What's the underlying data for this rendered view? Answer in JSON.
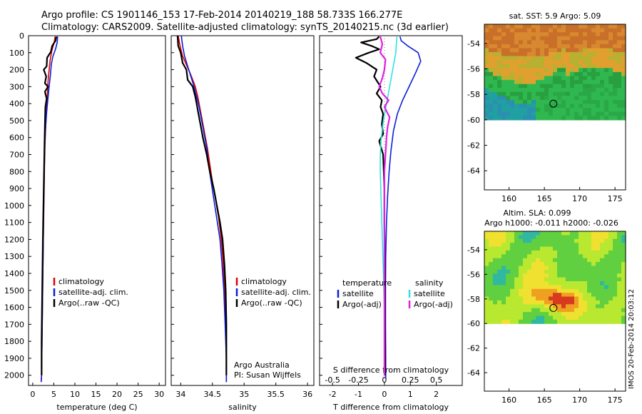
{
  "title": {
    "line1": "Argo profile: CS 1901146_153 17-Feb-2014 20140219_188 58.733S 166.277E",
    "line2": "Climatology: CARS2009. Satellite-adjusted climatology: synTS_20140215.nc (3d earlier)"
  },
  "colors": {
    "climatology": "#e00000",
    "satellite": "#0a1ed8",
    "argo": "#000000",
    "sat_t": "#33e0e0",
    "argo_adj_s": "#e020e0"
  },
  "side_text": "IMOS 20-Feb-2014 20:03:12",
  "chart_data": [
    {
      "type": "line",
      "xlabel": "temperature (deg C)",
      "ylabel": "",
      "xlim": [
        -1,
        31.5
      ],
      "ylim": [
        2060,
        0
      ],
      "xticks": [
        "0",
        "5",
        "10",
        "15",
        "20",
        "25",
        "30"
      ],
      "yticks": [
        "0",
        "100",
        "200",
        "300",
        "400",
        "500",
        "600",
        "700",
        "800",
        "900",
        "1000",
        "1100",
        "1200",
        "1300",
        "1400",
        "1500",
        "1600",
        "1700",
        "1800",
        "1900",
        "2000"
      ],
      "legend": [
        "climatology",
        "satellite-adj. clim.",
        "Argo(..raw -QC)"
      ],
      "series": [
        {
          "name": "climatology",
          "points": [
            [
              5.3,
              5
            ],
            [
              5.1,
              40
            ],
            [
              4.5,
              90
            ],
            [
              4.1,
              150
            ],
            [
              3.8,
              220
            ],
            [
              3.6,
              280
            ],
            [
              3.5,
              340
            ],
            [
              3.3,
              420
            ],
            [
              3.1,
              520
            ],
            [
              2.9,
              640
            ],
            [
              2.8,
              760
            ],
            [
              2.7,
              900
            ],
            [
              2.6,
              1050
            ],
            [
              2.5,
              1200
            ],
            [
              2.4,
              1400
            ],
            [
              2.3,
              1600
            ],
            [
              2.2,
              1800
            ],
            [
              2.1,
              2000
            ],
            [
              2.0,
              2040
            ]
          ]
        },
        {
          "name": "satellite-adj. clim.",
          "points": [
            [
              5.9,
              5
            ],
            [
              5.8,
              40
            ],
            [
              5.4,
              80
            ],
            [
              4.8,
              120
            ],
            [
              4.4,
              170
            ],
            [
              4.2,
              230
            ],
            [
              3.9,
              300
            ],
            [
              3.6,
              370
            ],
            [
              3.3,
              450
            ],
            [
              3.0,
              560
            ],
            [
              2.8,
              700
            ],
            [
              2.7,
              850
            ],
            [
              2.6,
              1000
            ],
            [
              2.5,
              1200
            ],
            [
              2.4,
              1400
            ],
            [
              2.3,
              1600
            ],
            [
              2.2,
              1800
            ],
            [
              2.1,
              2000
            ],
            [
              2.0,
              2040
            ]
          ]
        },
        {
          "name": "Argo(..raw -QC)",
          "points": [
            [
              5.6,
              5
            ],
            [
              5.4,
              30
            ],
            [
              4.6,
              60
            ],
            [
              4.3,
              95
            ],
            [
              3.4,
              130
            ],
            [
              3.3,
              180
            ],
            [
              2.6,
              200
            ],
            [
              3.2,
              240
            ],
            [
              2.9,
              280
            ],
            [
              3.6,
              300
            ],
            [
              2.9,
              330
            ],
            [
              3.3,
              370
            ],
            [
              3.0,
              420
            ],
            [
              2.9,
              520
            ],
            [
              2.8,
              640
            ],
            [
              2.7,
              760
            ],
            [
              2.6,
              900
            ],
            [
              2.5,
              1050
            ],
            [
              2.4,
              1200
            ],
            [
              2.3,
              1400
            ],
            [
              2.2,
              1600
            ],
            [
              2.1,
              1800
            ],
            [
              2.1,
              2000
            ]
          ]
        }
      ]
    },
    {
      "type": "line",
      "xlabel": "salinity",
      "xlim": [
        33.85,
        36.1
      ],
      "ylim": [
        2060,
        0
      ],
      "xticks": [
        "34",
        "34.5",
        "35",
        "35.5",
        "36"
      ],
      "legend": [
        "climatology",
        "satellite-adj. clim.",
        "Argo(..raw -QC)"
      ],
      "annotations": [
        "Argo Australia",
        "PI: Susan Wijffels"
      ],
      "series": [
        {
          "name": "climatology",
          "points": [
            [
              33.96,
              0
            ],
            [
              33.99,
              60
            ],
            [
              34.03,
              120
            ],
            [
              34.1,
              180
            ],
            [
              34.17,
              240
            ],
            [
              34.23,
              300
            ],
            [
              34.27,
              360
            ],
            [
              34.3,
              420
            ],
            [
              34.34,
              500
            ],
            [
              34.38,
              580
            ],
            [
              34.42,
              660
            ],
            [
              34.46,
              760
            ],
            [
              34.5,
              860
            ],
            [
              34.55,
              960
            ],
            [
              34.6,
              1080
            ],
            [
              34.64,
              1200
            ],
            [
              34.67,
              1340
            ],
            [
              34.69,
              1500
            ],
            [
              34.71,
              1700
            ],
            [
              34.72,
              1900
            ],
            [
              34.72,
              2040
            ]
          ]
        },
        {
          "name": "satellite-adj. clim.",
          "points": [
            [
              34.01,
              0
            ],
            [
              34.03,
              60
            ],
            [
              34.06,
              120
            ],
            [
              34.11,
              180
            ],
            [
              34.16,
              240
            ],
            [
              34.21,
              300
            ],
            [
              34.25,
              360
            ],
            [
              34.29,
              420
            ],
            [
              34.33,
              500
            ],
            [
              34.37,
              580
            ],
            [
              34.41,
              660
            ],
            [
              34.44,
              760
            ],
            [
              34.48,
              860
            ],
            [
              34.52,
              960
            ],
            [
              34.57,
              1080
            ],
            [
              34.62,
              1200
            ],
            [
              34.65,
              1340
            ],
            [
              34.68,
              1500
            ],
            [
              34.7,
              1700
            ],
            [
              34.72,
              1900
            ],
            [
              34.72,
              2040
            ]
          ]
        },
        {
          "name": "Argo(..raw -QC)",
          "points": [
            [
              33.95,
              0
            ],
            [
              33.96,
              60
            ],
            [
              34.0,
              100
            ],
            [
              34.03,
              160
            ],
            [
              34.09,
              200
            ],
            [
              34.11,
              260
            ],
            [
              34.19,
              300
            ],
            [
              34.23,
              360
            ],
            [
              34.25,
              400
            ],
            [
              34.28,
              460
            ],
            [
              34.31,
              520
            ],
            [
              34.35,
              600
            ],
            [
              34.41,
              700
            ],
            [
              34.46,
              800
            ],
            [
              34.52,
              900
            ],
            [
              34.57,
              1000
            ],
            [
              34.62,
              1100
            ],
            [
              34.66,
              1200
            ],
            [
              34.69,
              1350
            ],
            [
              34.71,
              1500
            ],
            [
              34.72,
              1700
            ],
            [
              34.72,
              1900
            ],
            [
              34.72,
              2000
            ]
          ]
        }
      ]
    },
    {
      "type": "line",
      "xlabel": "T difference from climatology",
      "xlabel_top": "S difference from climatology",
      "xlim": [
        -2.5,
        3.0
      ],
      "ylim": [
        2060,
        0
      ],
      "xticks": [
        "-2",
        "-1",
        "0",
        "1",
        "2"
      ],
      "xticks_top": [
        "-0.5",
        "-0.25",
        "0",
        "0.25",
        "0.5"
      ],
      "legend_headers": [
        "temperature",
        "salinity"
      ],
      "legend": [
        "satellite",
        "Argo(-adj)",
        "satellite",
        "Argo(-adj)"
      ],
      "series": [
        {
          "name": "satellite",
          "quantity": "temperature",
          "points": [
            [
              0.6,
              5
            ],
            [
              0.65,
              30
            ],
            [
              0.9,
              60
            ],
            [
              1.3,
              100
            ],
            [
              1.4,
              150
            ],
            [
              1.2,
              220
            ],
            [
              0.95,
              300
            ],
            [
              0.7,
              380
            ],
            [
              0.5,
              460
            ],
            [
              0.35,
              560
            ],
            [
              0.25,
              680
            ],
            [
              0.18,
              800
            ],
            [
              0.12,
              950
            ],
            [
              0.08,
              1100
            ],
            [
              0.05,
              1300
            ],
            [
              0.04,
              1500
            ],
            [
              0.04,
              1700
            ],
            [
              0.05,
              1900
            ],
            [
              0.05,
              2020
            ]
          ]
        },
        {
          "name": "Argo(-adj)",
          "quantity": "temperature",
          "points": [
            [
              -0.2,
              5
            ],
            [
              -0.3,
              20
            ],
            [
              -0.9,
              40
            ],
            [
              -0.5,
              60
            ],
            [
              -0.2,
              80
            ],
            [
              -0.6,
              100
            ],
            [
              -1.1,
              130
            ],
            [
              -0.7,
              160
            ],
            [
              -0.3,
              200
            ],
            [
              -0.4,
              240
            ],
            [
              -0.15,
              300
            ],
            [
              -0.3,
              340
            ],
            [
              -0.1,
              380
            ],
            [
              -0.15,
              420
            ],
            [
              -0.05,
              460
            ],
            [
              -0.1,
              520
            ],
            [
              -0.05,
              580
            ],
            [
              -0.2,
              620
            ],
            [
              -0.05,
              700
            ],
            [
              0.0,
              900
            ],
            [
              0.0,
              1100
            ],
            [
              0.02,
              1400
            ],
            [
              0.02,
              1700
            ],
            [
              0.03,
              2000
            ]
          ]
        },
        {
          "name": "satellite",
          "quantity": "salinity",
          "points": [
            [
              0.12,
              5
            ],
            [
              0.11,
              100
            ],
            [
              0.08,
              200
            ],
            [
              0.05,
              300
            ],
            [
              0.02,
              400
            ],
            [
              -0.01,
              500
            ],
            [
              -0.03,
              600
            ],
            [
              -0.04,
              700
            ],
            [
              -0.04,
              800
            ],
            [
              -0.03,
              1000
            ],
            [
              -0.02,
              1200
            ],
            [
              -0.01,
              1400
            ],
            [
              0.0,
              1600
            ],
            [
              0.0,
              1800
            ],
            [
              0.0,
              2000
            ]
          ]
        },
        {
          "name": "Argo(-adj)",
          "quantity": "salinity",
          "points": [
            [
              -0.04,
              5
            ],
            [
              -0.02,
              50
            ],
            [
              -0.04,
              100
            ],
            [
              0.01,
              140
            ],
            [
              0.0,
              200
            ],
            [
              -0.02,
              250
            ],
            [
              -0.05,
              300
            ],
            [
              -0.02,
              340
            ],
            [
              0.04,
              380
            ],
            [
              0.0,
              420
            ],
            [
              0.05,
              480
            ],
            [
              0.03,
              540
            ],
            [
              0.02,
              600
            ],
            [
              0.01,
              700
            ],
            [
              0.0,
              800
            ],
            [
              0.0,
              1000
            ],
            [
              0.0,
              1200
            ],
            [
              0.0,
              1500
            ],
            [
              0.0,
              1800
            ],
            [
              0.0,
              2000
            ]
          ]
        }
      ]
    },
    {
      "type": "heatmap",
      "title": "sat. SST: 5.9 Argo: 5.09",
      "xlim": [
        156.5,
        176.5
      ],
      "ylim": [
        -65.5,
        -52.5
      ],
      "xticks": [
        "160",
        "165",
        "170",
        "175"
      ],
      "yticks": [
        "-54",
        "-56",
        "-58",
        "-60",
        "-62",
        "-64"
      ],
      "data_extent_lat": [
        -60,
        -52.5
      ],
      "marker": {
        "lon": 166.277,
        "lat": -58.733
      }
    },
    {
      "type": "heatmap",
      "title": "Altim. SLA: 0.099",
      "subtitle": "Argo h1000: -0.011 h2000: -0.026",
      "xlim": [
        156.5,
        176.5
      ],
      "ylim": [
        -65.5,
        -52.5
      ],
      "xticks": [
        "160",
        "165",
        "170",
        "175"
      ],
      "yticks": [
        "-54",
        "-56",
        "-58",
        "-60",
        "-62",
        "-64"
      ],
      "data_extent_lat": [
        -60,
        -52.5
      ],
      "marker": {
        "lon": 166.277,
        "lat": -58.733
      }
    }
  ]
}
